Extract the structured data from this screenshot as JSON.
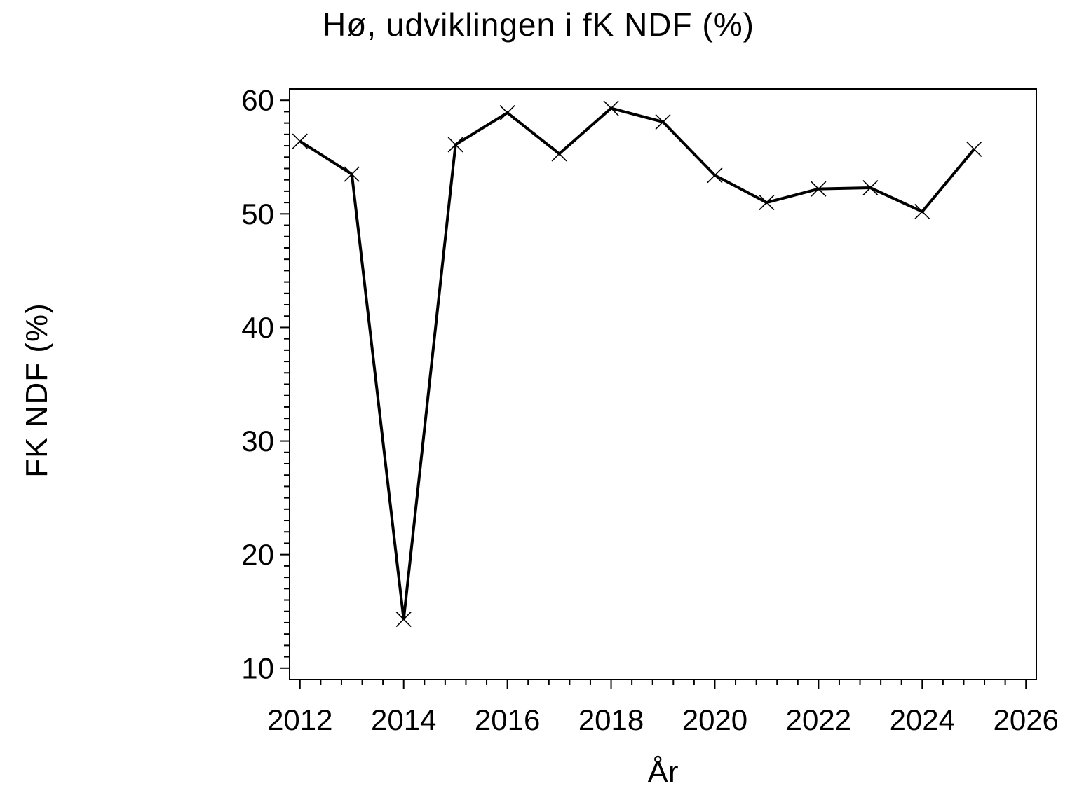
{
  "page": {
    "background_color": "#ffffff",
    "foreground_color": "#000000"
  },
  "chart_data": {
    "type": "line",
    "title": "Hø, udviklingen i fK NDF (%)",
    "xlabel": "År",
    "ylabel": "FK NDF (%)",
    "x": [
      2012,
      2013,
      2014,
      2015,
      2016,
      2017,
      2018,
      2019,
      2020,
      2021,
      2022,
      2023,
      2024,
      2025
    ],
    "values": [
      56.4,
      53.5,
      14.3,
      56.1,
      58.9,
      55.3,
      59.3,
      58.1,
      53.4,
      51.0,
      52.2,
      52.3,
      50.2,
      55.7
    ],
    "marker": "x",
    "line_color": "#000000",
    "marker_color": "#000000",
    "xlim": [
      2011.8,
      2026.2
    ],
    "ylim": [
      9,
      61
    ],
    "x_major_ticks": [
      2012,
      2014,
      2016,
      2018,
      2020,
      2022,
      2024,
      2026
    ],
    "x_minor_step": 0.4,
    "y_major_ticks": [
      10,
      20,
      30,
      40,
      50,
      60
    ],
    "y_minor_step": 1,
    "grid": false,
    "legend": null,
    "frame": true
  }
}
